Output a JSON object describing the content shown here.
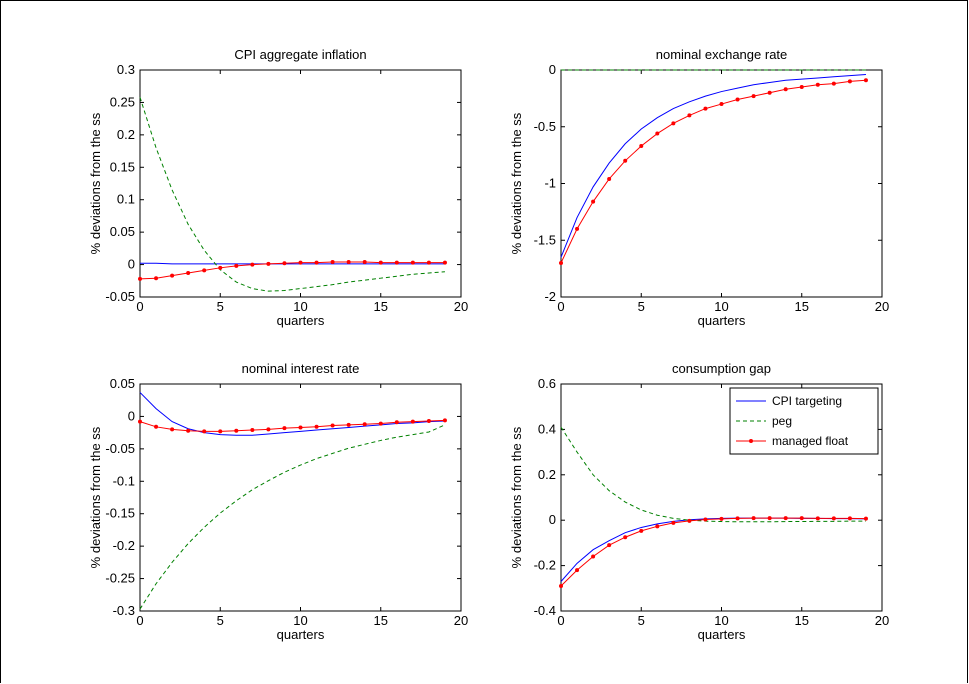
{
  "series_styles": [
    {
      "color": "#0000ff",
      "dash": "",
      "marker": false
    },
    {
      "color": "#008000",
      "dash": "4,3",
      "marker": false
    },
    {
      "color": "#ff0000",
      "dash": "",
      "marker": true
    }
  ],
  "legend": {
    "entries": [
      "CPI targeting",
      "peg",
      "managed float"
    ],
    "placement": "top-right of consumption gap panel"
  },
  "chart_data": [
    {
      "type": "line",
      "title": "CPI aggregate inflation",
      "xlabel": "quarters",
      "ylabel": "% deviations from the ss",
      "xlim": [
        0,
        20
      ],
      "ylim": [
        -0.05,
        0.3
      ],
      "xticks": [
        "0",
        "5",
        "10",
        "15",
        "20"
      ],
      "yticks": [
        "-0.05",
        "0",
        "0.05",
        "0.1",
        "0.15",
        "0.2",
        "0.25",
        "0.3"
      ],
      "x": [
        0,
        1,
        2,
        3,
        4,
        5,
        6,
        7,
        8,
        9,
        10,
        11,
        12,
        13,
        14,
        15,
        16,
        17,
        18,
        19
      ],
      "series": [
        {
          "name": "CPI targeting",
          "values": [
            0.002,
            0.002,
            0.001,
            0.001,
            0.001,
            0.001,
            0.001,
            0.001,
            0.001,
            0.001,
            0.001,
            0.001,
            0.001,
            0.001,
            0.001,
            0.001,
            0.001,
            0.001,
            0.001,
            0.001
          ]
        },
        {
          "name": "peg",
          "values": [
            0.258,
            0.18,
            0.115,
            0.062,
            0.022,
            -0.008,
            -0.027,
            -0.037,
            -0.041,
            -0.04,
            -0.037,
            -0.034,
            -0.031,
            -0.027,
            -0.024,
            -0.021,
            -0.018,
            -0.015,
            -0.013,
            -0.011
          ]
        },
        {
          "name": "managed float",
          "values": [
            -0.022,
            -0.021,
            -0.017,
            -0.013,
            -0.009,
            -0.005,
            -0.002,
            0.0,
            0.001,
            0.002,
            0.003,
            0.003,
            0.004,
            0.004,
            0.004,
            0.003,
            0.003,
            0.003,
            0.003,
            0.003
          ]
        }
      ]
    },
    {
      "type": "line",
      "title": "nominal exchange rate",
      "xlabel": "quarters",
      "ylabel": "% deviations from the ss",
      "xlim": [
        0,
        20
      ],
      "ylim": [
        -2,
        0
      ],
      "xticks": [
        "0",
        "5",
        "10",
        "15",
        "20"
      ],
      "yticks": [
        "-2",
        "-1.5",
        "-1",
        "-0.5",
        "0"
      ],
      "x": [
        0,
        1,
        2,
        3,
        4,
        5,
        6,
        7,
        8,
        9,
        10,
        11,
        12,
        13,
        14,
        15,
        16,
        17,
        18,
        19
      ],
      "series": [
        {
          "name": "CPI targeting",
          "values": [
            -1.65,
            -1.3,
            -1.03,
            -0.82,
            -0.65,
            -0.52,
            -0.42,
            -0.34,
            -0.28,
            -0.23,
            -0.19,
            -0.16,
            -0.13,
            -0.11,
            -0.09,
            -0.08,
            -0.07,
            -0.06,
            -0.05,
            -0.04
          ]
        },
        {
          "name": "peg",
          "values": [
            0,
            0,
            0,
            0,
            0,
            0,
            0,
            0,
            0,
            0,
            0,
            0,
            0,
            0,
            0,
            0,
            0,
            0,
            0,
            0
          ]
        },
        {
          "name": "managed float",
          "values": [
            -1.7,
            -1.4,
            -1.16,
            -0.96,
            -0.8,
            -0.67,
            -0.56,
            -0.47,
            -0.4,
            -0.34,
            -0.3,
            -0.26,
            -0.23,
            -0.2,
            -0.17,
            -0.15,
            -0.13,
            -0.12,
            -0.1,
            -0.09
          ]
        }
      ]
    },
    {
      "type": "line",
      "title": "nominal interest rate",
      "xlabel": "quarters",
      "ylabel": "% deviations from the ss",
      "xlim": [
        0,
        20
      ],
      "ylim": [
        -0.3,
        0.05
      ],
      "xticks": [
        "0",
        "5",
        "10",
        "15",
        "20"
      ],
      "yticks": [
        "-0.3",
        "-0.25",
        "-0.2",
        "-0.15",
        "-0.1",
        "-0.05",
        "0",
        "0.05"
      ],
      "x": [
        0,
        1,
        2,
        3,
        4,
        5,
        6,
        7,
        8,
        9,
        10,
        11,
        12,
        13,
        14,
        15,
        16,
        17,
        18,
        19
      ],
      "series": [
        {
          "name": "CPI targeting",
          "values": [
            0.037,
            0.012,
            -0.008,
            -0.019,
            -0.025,
            -0.028,
            -0.029,
            -0.029,
            -0.027,
            -0.025,
            -0.023,
            -0.021,
            -0.019,
            -0.017,
            -0.015,
            -0.013,
            -0.011,
            -0.01,
            -0.008,
            -0.007
          ]
        },
        {
          "name": "peg",
          "values": [
            -0.297,
            -0.258,
            -0.225,
            -0.196,
            -0.171,
            -0.149,
            -0.13,
            -0.113,
            -0.099,
            -0.086,
            -0.075,
            -0.065,
            -0.057,
            -0.049,
            -0.043,
            -0.037,
            -0.032,
            -0.028,
            -0.024,
            -0.013
          ]
        },
        {
          "name": "managed float",
          "values": [
            -0.008,
            -0.016,
            -0.02,
            -0.022,
            -0.023,
            -0.023,
            -0.022,
            -0.021,
            -0.02,
            -0.018,
            -0.017,
            -0.016,
            -0.014,
            -0.013,
            -0.012,
            -0.011,
            -0.009,
            -0.008,
            -0.007,
            -0.006
          ]
        }
      ]
    },
    {
      "type": "line",
      "title": "consumption gap",
      "xlabel": "quarters",
      "ylabel": "% deviations from the ss",
      "xlim": [
        0,
        20
      ],
      "ylim": [
        -0.4,
        0.6
      ],
      "xticks": [
        "0",
        "5",
        "10",
        "15",
        "20"
      ],
      "yticks": [
        "-0.4",
        "-0.2",
        "0",
        "0.2",
        "0.4",
        "0.6"
      ],
      "x": [
        0,
        1,
        2,
        3,
        4,
        5,
        6,
        7,
        8,
        9,
        10,
        11,
        12,
        13,
        14,
        15,
        16,
        17,
        18,
        19
      ],
      "series": [
        {
          "name": "CPI targeting",
          "values": [
            -0.27,
            -0.19,
            -0.13,
            -0.09,
            -0.055,
            -0.032,
            -0.016,
            -0.005,
            0.002,
            0.006,
            0.008,
            0.009,
            0.009,
            0.009,
            0.009,
            0.008,
            0.008,
            0.007,
            0.007,
            0.006
          ]
        },
        {
          "name": "peg",
          "values": [
            0.41,
            0.3,
            0.2,
            0.13,
            0.08,
            0.045,
            0.022,
            0.008,
            0.0,
            -0.004,
            -0.006,
            -0.007,
            -0.007,
            -0.007,
            -0.006,
            -0.006,
            -0.005,
            -0.005,
            -0.004,
            -0.004
          ]
        },
        {
          "name": "managed float",
          "values": [
            -0.29,
            -0.22,
            -0.16,
            -0.11,
            -0.075,
            -0.047,
            -0.027,
            -0.012,
            -0.003,
            0.003,
            0.006,
            0.008,
            0.009,
            0.009,
            0.009,
            0.009,
            0.008,
            0.008,
            0.008,
            0.007
          ]
        }
      ]
    }
  ]
}
